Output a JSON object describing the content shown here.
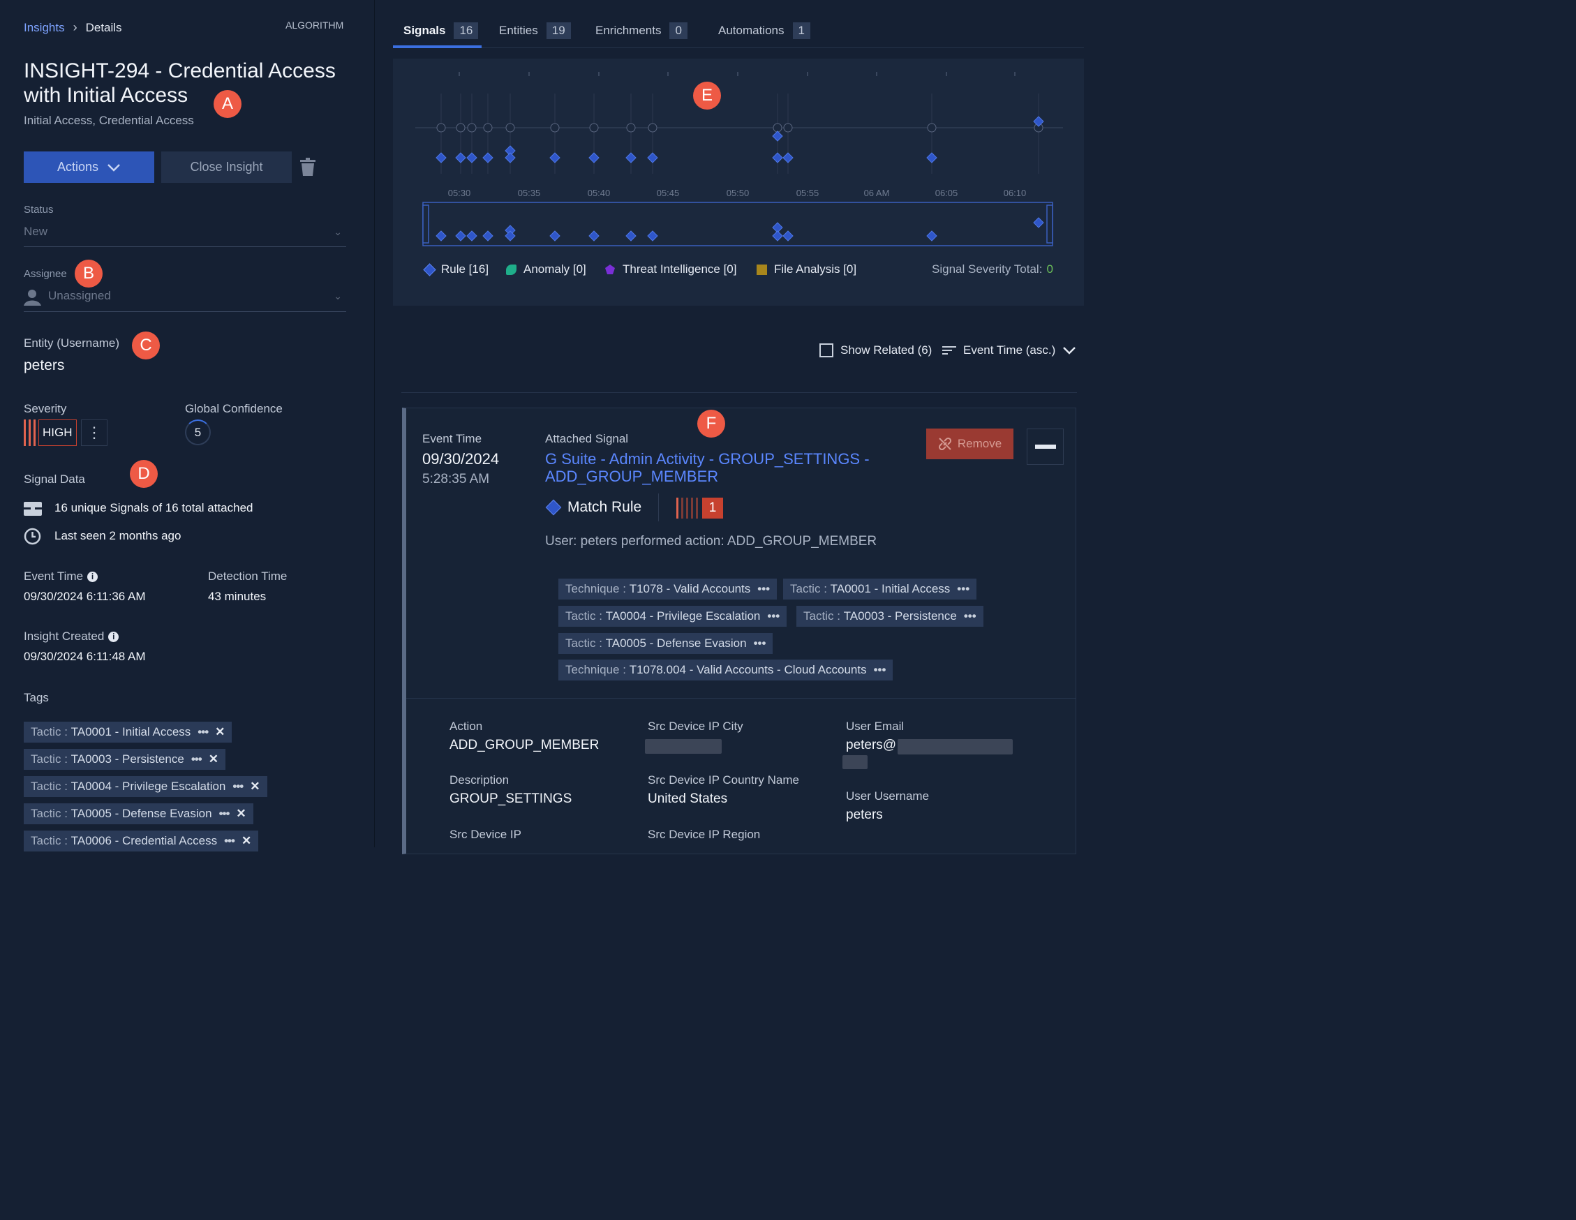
{
  "breadcrumb": {
    "link": "Insights",
    "current": "Details",
    "right_label": "ALGORITHM"
  },
  "insight": {
    "title_line1": "INSIGHT-294 - Credential Access",
    "title_line2": "with Initial Access",
    "subtitle": "Initial Access, Credential Access"
  },
  "buttons": {
    "actions": "Actions",
    "close": "Close Insight",
    "remove": "Remove"
  },
  "status": {
    "label": "Status",
    "value": "New"
  },
  "assignee": {
    "label": "Assignee",
    "value": "Unassigned"
  },
  "entity": {
    "label": "Entity (Username)",
    "value": "peters"
  },
  "severity": {
    "label": "Severity",
    "value": "HIGH"
  },
  "confidence": {
    "label": "Global Confidence",
    "value": "5"
  },
  "signal_data": {
    "label": "Signal Data",
    "signals_text": "16 unique Signals of 16 total attached",
    "last_seen": "Last seen 2 months ago"
  },
  "times": {
    "event_label": "Event Time",
    "event_value": "09/30/2024 6:11:36 AM",
    "detection_label": "Detection Time",
    "detection_value": "43 minutes",
    "created_label": "Insight Created",
    "created_value": "09/30/2024 6:11:48 AM"
  },
  "tags": {
    "label": "Tags",
    "items": [
      {
        "key": "Tactic",
        "value": "TA0001 - Initial Access"
      },
      {
        "key": "Tactic",
        "value": "TA0003 - Persistence"
      },
      {
        "key": "Tactic",
        "value": "TA0004 - Privilege Escalation"
      },
      {
        "key": "Tactic",
        "value": "TA0005 - Defense Evasion"
      },
      {
        "key": "Tactic",
        "value": "TA0006 - Credential Access"
      }
    ]
  },
  "tabs": [
    {
      "label": "Signals",
      "count": "16"
    },
    {
      "label": "Entities",
      "count": "19"
    },
    {
      "label": "Enrichments",
      "count": "0"
    },
    {
      "label": "Automations",
      "count": "1"
    }
  ],
  "timeline": {
    "ticks": [
      "05:30",
      "05:35",
      "05:40",
      "05:45",
      "05:50",
      "05:55",
      "06 AM",
      "06:05",
      "06:10"
    ],
    "legend": [
      {
        "label": "Rule [16]",
        "color": "#2f56c9"
      },
      {
        "label": "Anomaly [0]",
        "color": "#1fae8a"
      },
      {
        "label": "Threat Intelligence [0]",
        "color": "#7a2fd6"
      },
      {
        "label": "File Analysis [0]",
        "color": "#a8861c"
      }
    ],
    "severity_total_label": "Signal Severity Total:",
    "severity_total_value": "0"
  },
  "list_controls": {
    "show_related": "Show Related (6)",
    "sort": "Event Time (asc.)"
  },
  "signal": {
    "event_time_label": "Event Time",
    "event_date": "09/30/2024",
    "event_time": "5:28:35 AM",
    "attached_label": "Attached Signal",
    "name_line1": "G Suite - Admin Activity - GROUP_SETTINGS  -",
    "name_line2": "ADD_GROUP_MEMBER",
    "match": "Match Rule",
    "severity_num": "1",
    "description": "User: peters performed action: ADD_GROUP_MEMBER",
    "chips": [
      {
        "key": "Technique",
        "value": "T1078 - Valid Accounts"
      },
      {
        "key": "Tactic",
        "value": "TA0001 - Initial Access"
      },
      {
        "key": "Tactic",
        "value": "TA0004 - Privilege Escalation"
      },
      {
        "key": "Tactic",
        "value": "TA0003 - Persistence"
      },
      {
        "key": "Tactic",
        "value": "TA0005 - Defense Evasion"
      },
      {
        "key": "Technique",
        "value": "T1078.004 - Valid Accounts - Cloud Accounts"
      }
    ],
    "fields": {
      "action_label": "Action",
      "action_value": "ADD_GROUP_MEMBER",
      "description_label": "Description",
      "description_value": "GROUP_SETTINGS",
      "src_ip_label": "Src Device IP",
      "city_label": "Src Device IP City",
      "country_label": "Src Device IP Country Name",
      "country_value": "United States",
      "region_label": "Src Device IP Region",
      "email_label": "User Email",
      "email_value": "peters@",
      "username_label": "User Username",
      "username_value": "peters"
    }
  },
  "markers": [
    "A",
    "B",
    "C",
    "D",
    "E",
    "F"
  ]
}
